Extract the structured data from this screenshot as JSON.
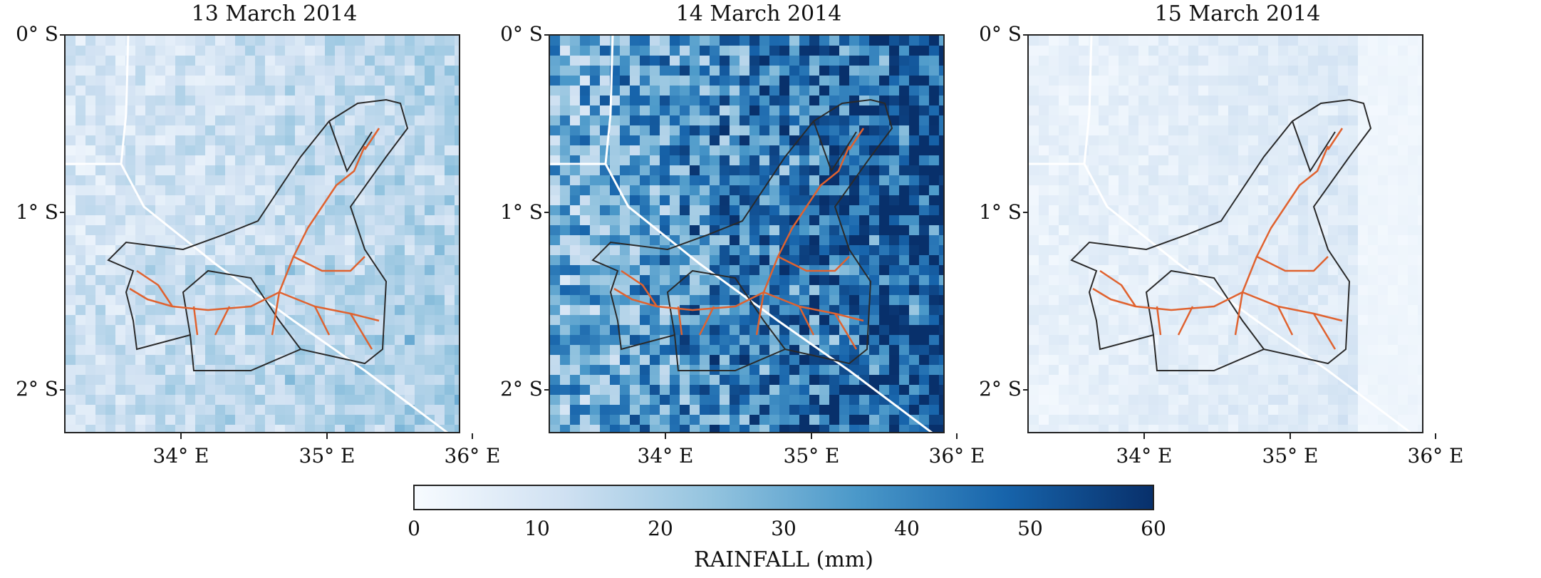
{
  "colors": {
    "rain_low": "#f4f8fd",
    "rain_high": "#08306b",
    "basin_outline": "#2a2a2a",
    "river": "#e0622f",
    "border_line": "#ffffff"
  },
  "axes": {
    "y_ticks": [
      "0° S",
      "1° S",
      "2° S"
    ],
    "x_ticks": [
      "34° E",
      "35° E",
      "36° E"
    ]
  },
  "panels": [
    {
      "title": "13 March 2014",
      "mean_rainfall_mm": 8,
      "east_gradient": 0.6
    },
    {
      "title": "14 March 2014",
      "mean_rainfall_mm": 25,
      "east_gradient": 1.8
    },
    {
      "title": "15 March 2014",
      "mean_rainfall_mm": 4,
      "east_gradient": 0.3
    }
  ],
  "colorbar": {
    "title": "RAINFALL (mm)",
    "min": 0,
    "max": 60,
    "tick_labels": [
      "0",
      "10",
      "20",
      "30",
      "40",
      "50",
      "60"
    ]
  }
}
